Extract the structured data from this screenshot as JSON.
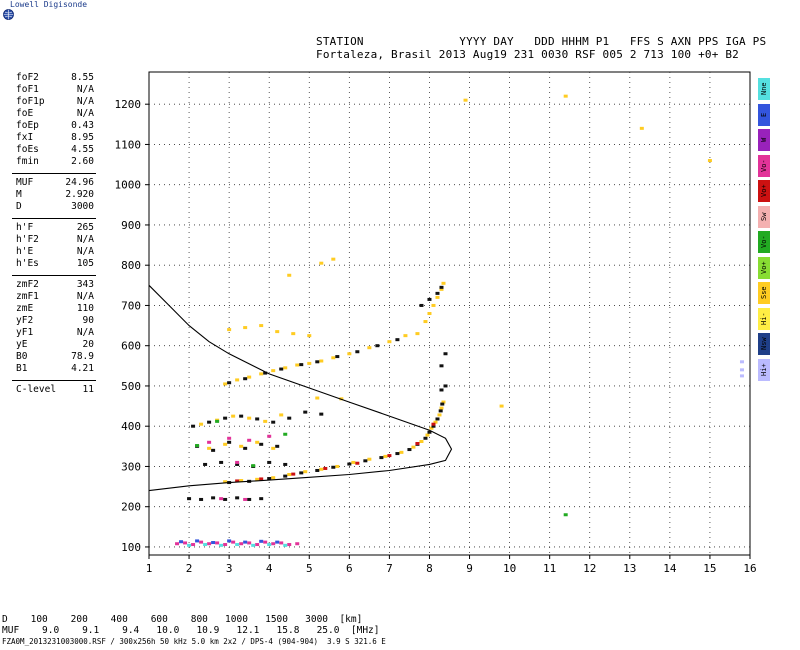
{
  "brand": "Lowell Digisonde",
  "header": {
    "line1": "STATION              YYYY DAY   DDD HHHM P1   FFS S AXN PPS IGA PS",
    "line2": "Fortaleza, Brasil 2013 Aug19 231 0030 RSF 005 2 713 100 +0+ B2"
  },
  "params": [
    {
      "label": "foF2",
      "value": "8.55"
    },
    {
      "label": "foF1",
      "value": "N/A"
    },
    {
      "label": "foF1p",
      "value": "N/A"
    },
    {
      "label": "foE",
      "value": "N/A"
    },
    {
      "label": "foEp",
      "value": "0.43"
    },
    {
      "label": "fxI",
      "value": "8.95"
    },
    {
      "label": "foEs",
      "value": "4.55"
    },
    {
      "label": "fmin",
      "value": "2.60"
    },
    {
      "sep": true
    },
    {
      "label": "MUF",
      "value": "24.96"
    },
    {
      "label": "M",
      "value": "2.920"
    },
    {
      "label": "D",
      "value": "3000"
    },
    {
      "sep": true
    },
    {
      "label": "h'F",
      "value": "265"
    },
    {
      "label": "h'F2",
      "value": "N/A"
    },
    {
      "label": "h'E",
      "value": "N/A"
    },
    {
      "label": "h'Es",
      "value": "105"
    },
    {
      "sep": true
    },
    {
      "label": "zmF2",
      "value": "343"
    },
    {
      "label": "zmF1",
      "value": "N/A"
    },
    {
      "label": "zmE",
      "value": "110"
    },
    {
      "label": "yF2",
      "value": "90"
    },
    {
      "label": "yF1",
      "value": "N/A"
    },
    {
      "label": "yE",
      "value": "20"
    },
    {
      "label": "B0",
      "value": "78.9"
    },
    {
      "label": "B1",
      "value": "4.21"
    },
    {
      "sep": true
    },
    {
      "label": "C-level",
      "value": "11"
    }
  ],
  "legend": [
    {
      "label": "Nne",
      "color": "#55e0e0"
    },
    {
      "label": "E",
      "color": "#3355dd"
    },
    {
      "label": "W",
      "color": "#9922bb"
    },
    {
      "label": "Vo-",
      "color": "#e23399"
    },
    {
      "label": "Vo+",
      "color": "#cc1111"
    },
    {
      "label": "Sw",
      "color": "#f4b0b0"
    },
    {
      "label": "Vo-",
      "color": "#22aa22"
    },
    {
      "label": "Vo+",
      "color": "#88dd33"
    },
    {
      "label": "Sse",
      "color": "#ffcc22"
    },
    {
      "label": "Hi-",
      "color": "#ffee44"
    },
    {
      "label": "Nsw",
      "color": "#1f3f88"
    },
    {
      "label": "Hi+",
      "color": "#bbbbff"
    }
  ],
  "muf_table": {
    "d_label": "D",
    "d_values": [
      "100",
      "200",
      "400",
      "600",
      "800",
      "1000",
      "1500",
      "3000"
    ],
    "d_unit": "[km]",
    "muf_label": "MUF",
    "muf_values": [
      "9.0",
      "9.1",
      "9.4",
      "10.0",
      "10.9",
      "12.1",
      "15.8",
      "25.0"
    ],
    "muf_unit": "[MHz]"
  },
  "footer": "FZA0M_2013231003000.RSF / 300x256h 50 kHz 5.0 km 2x2 / DPS-4 (904-904)  3.9 S 321.6 E",
  "chart_data": {
    "type": "scatter",
    "xlim": [
      1,
      16
    ],
    "ylim": [
      80,
      1280
    ],
    "xticks": [
      1,
      2,
      3,
      4,
      5,
      6,
      7,
      8,
      9,
      10,
      11,
      12,
      13,
      14,
      15,
      16
    ],
    "yticks": [
      100,
      200,
      300,
      400,
      500,
      600,
      700,
      800,
      900,
      1000,
      1100,
      1200
    ],
    "grid": true,
    "profile_curve": [
      [
        1.0,
        750
      ],
      [
        1.5,
        700
      ],
      [
        2.0,
        650
      ],
      [
        2.5,
        610
      ],
      [
        3.0,
        580
      ],
      [
        4.0,
        530
      ],
      [
        5.0,
        495
      ],
      [
        6.0,
        460
      ],
      [
        7.0,
        425
      ],
      [
        8.0,
        390
      ],
      [
        8.4,
        370
      ],
      [
        8.55,
        343
      ],
      [
        8.4,
        315
      ],
      [
        8.0,
        305
      ],
      [
        7.0,
        290
      ],
      [
        6.0,
        280
      ],
      [
        5.0,
        273
      ],
      [
        4.0,
        266
      ],
      [
        3.0,
        260
      ],
      [
        2.0,
        252
      ],
      [
        1.0,
        240
      ]
    ],
    "traces": [
      {
        "name": "Es",
        "color": "#e23399",
        "points": [
          [
            1.7,
            108
          ],
          [
            1.9,
            110
          ],
          [
            2.1,
            106
          ],
          [
            2.3,
            112
          ],
          [
            2.5,
            108
          ],
          [
            2.7,
            110
          ],
          [
            2.9,
            106
          ],
          [
            3.1,
            112
          ],
          [
            3.3,
            108
          ],
          [
            3.5,
            110
          ],
          [
            3.7,
            106
          ],
          [
            3.9,
            112
          ],
          [
            4.1,
            108
          ],
          [
            4.3,
            110
          ],
          [
            4.5,
            106
          ],
          [
            4.7,
            108
          ]
        ]
      },
      {
        "name": "Es2",
        "color": "#3355dd",
        "points": [
          [
            1.8,
            113
          ],
          [
            2.2,
            115
          ],
          [
            2.6,
            111
          ],
          [
            3.0,
            115
          ],
          [
            3.4,
            112
          ],
          [
            3.8,
            114
          ],
          [
            4.2,
            112
          ]
        ]
      },
      {
        "name": "Es3",
        "color": "#55e0e0",
        "points": [
          [
            2.0,
            104
          ],
          [
            2.4,
            106
          ],
          [
            2.8,
            104
          ],
          [
            3.2,
            106
          ],
          [
            3.6,
            104
          ],
          [
            4.0,
            106
          ],
          [
            4.4,
            104
          ]
        ]
      },
      {
        "name": "F-low",
        "color": "#ffcc22",
        "points": [
          [
            2.9,
            262
          ],
          [
            3.3,
            265
          ],
          [
            3.7,
            268
          ],
          [
            4.1,
            272
          ],
          [
            4.5,
            280
          ],
          [
            4.9,
            287
          ],
          [
            5.3,
            293
          ],
          [
            5.7,
            300
          ],
          [
            6.1,
            310
          ],
          [
            6.5,
            318
          ],
          [
            6.9,
            325
          ],
          [
            7.3,
            335
          ],
          [
            7.6,
            348
          ],
          [
            7.8,
            362
          ],
          [
            7.95,
            378
          ],
          [
            8.05,
            395
          ],
          [
            8.15,
            410
          ],
          [
            8.25,
            428
          ],
          [
            8.3,
            445
          ],
          [
            8.35,
            460
          ]
        ]
      },
      {
        "name": "F-low-k",
        "color": "#111111",
        "points": [
          [
            3.0,
            260
          ],
          [
            3.5,
            263
          ],
          [
            4.0,
            270
          ],
          [
            4.4,
            276
          ],
          [
            4.8,
            284
          ],
          [
            5.2,
            290
          ],
          [
            5.6,
            298
          ],
          [
            6.0,
            306
          ],
          [
            6.4,
            314
          ],
          [
            6.8,
            322
          ],
          [
            7.2,
            332
          ],
          [
            7.5,
            342
          ],
          [
            7.7,
            355
          ],
          [
            7.9,
            370
          ],
          [
            8.0,
            385
          ],
          [
            8.1,
            400
          ],
          [
            8.2,
            418
          ],
          [
            8.28,
            438
          ],
          [
            8.32,
            455
          ]
        ]
      },
      {
        "name": "F-low-r",
        "color": "#cc1111",
        "points": [
          [
            3.2,
            264
          ],
          [
            3.8,
            269
          ],
          [
            4.6,
            281
          ],
          [
            5.4,
            295
          ],
          [
            6.2,
            308
          ],
          [
            7.0,
            327
          ],
          [
            7.7,
            357
          ],
          [
            8.1,
            405
          ]
        ]
      },
      {
        "name": "F-2hop",
        "color": "#ffcc22",
        "points": [
          [
            2.9,
            505
          ],
          [
            3.2,
            515
          ],
          [
            3.5,
            522
          ],
          [
            3.8,
            530
          ],
          [
            4.1,
            538
          ],
          [
            4.4,
            545
          ],
          [
            4.7,
            552
          ],
          [
            5.0,
            556
          ],
          [
            5.3,
            562
          ],
          [
            5.6,
            570
          ],
          [
            6.0,
            580
          ],
          [
            6.5,
            595
          ],
          [
            7.0,
            610
          ],
          [
            7.4,
            625
          ]
        ]
      },
      {
        "name": "F-2hop-k",
        "color": "#111111",
        "points": [
          [
            3.0,
            508
          ],
          [
            3.4,
            518
          ],
          [
            3.9,
            532
          ],
          [
            4.3,
            542
          ],
          [
            4.8,
            553
          ],
          [
            5.2,
            560
          ],
          [
            5.7,
            573
          ],
          [
            6.2,
            585
          ],
          [
            6.7,
            600
          ],
          [
            7.2,
            615
          ]
        ]
      },
      {
        "name": "F-2hop-hi",
        "color": "#ffcc22",
        "points": [
          [
            7.7,
            630
          ],
          [
            7.9,
            660
          ],
          [
            8.0,
            680
          ],
          [
            8.1,
            700
          ],
          [
            8.2,
            720
          ],
          [
            8.3,
            740
          ],
          [
            8.35,
            755
          ]
        ]
      },
      {
        "name": "F-2hop-hik",
        "color": "#111111",
        "points": [
          [
            7.8,
            700
          ],
          [
            8.0,
            715
          ],
          [
            8.2,
            730
          ],
          [
            8.3,
            745
          ]
        ]
      },
      {
        "name": "spread",
        "color": "#111111",
        "points": [
          [
            2.1,
            400
          ],
          [
            2.5,
            410
          ],
          [
            2.9,
            420
          ],
          [
            3.3,
            425
          ],
          [
            3.7,
            418
          ],
          [
            4.1,
            410
          ],
          [
            4.5,
            420
          ],
          [
            4.9,
            435
          ],
          [
            5.3,
            430
          ],
          [
            2.2,
            350
          ],
          [
            2.6,
            340
          ],
          [
            3.0,
            360
          ],
          [
            3.4,
            345
          ],
          [
            3.8,
            355
          ],
          [
            4.2,
            350
          ],
          [
            2.4,
            305
          ],
          [
            2.8,
            310
          ],
          [
            3.2,
            305
          ],
          [
            3.6,
            300
          ],
          [
            4.0,
            310
          ],
          [
            4.4,
            305
          ],
          [
            2.0,
            220
          ],
          [
            2.3,
            218
          ],
          [
            2.6,
            222
          ],
          [
            2.9,
            218
          ],
          [
            3.2,
            222
          ],
          [
            3.5,
            218
          ],
          [
            3.8,
            220
          ]
        ]
      },
      {
        "name": "spread-y",
        "color": "#ffcc22",
        "points": [
          [
            2.3,
            405
          ],
          [
            2.7,
            415
          ],
          [
            3.1,
            425
          ],
          [
            3.5,
            420
          ],
          [
            3.9,
            412
          ],
          [
            4.3,
            428
          ],
          [
            2.5,
            345
          ],
          [
            2.9,
            355
          ],
          [
            3.3,
            350
          ],
          [
            3.7,
            360
          ],
          [
            4.1,
            345
          ],
          [
            3.0,
            640
          ],
          [
            3.4,
            645
          ],
          [
            3.8,
            650
          ],
          [
            4.2,
            635
          ],
          [
            4.6,
            630
          ],
          [
            5.0,
            625
          ]
        ]
      },
      {
        "name": "spread-m",
        "color": "#e23399",
        "points": [
          [
            2.5,
            360
          ],
          [
            3.0,
            370
          ],
          [
            3.5,
            365
          ],
          [
            4.0,
            375
          ],
          [
            2.8,
            220
          ],
          [
            3.4,
            218
          ],
          [
            3.2,
            310
          ]
        ]
      },
      {
        "name": "spread-g",
        "color": "#22aa22",
        "points": [
          [
            2.2,
            352
          ],
          [
            2.7,
            412
          ],
          [
            3.6,
            302
          ],
          [
            4.4,
            380
          ]
        ]
      },
      {
        "name": "misc",
        "color": "#ffcc22",
        "points": [
          [
            4.5,
            775
          ],
          [
            5.3,
            805
          ],
          [
            5.6,
            815
          ],
          [
            8.9,
            1210
          ],
          [
            11.4,
            1220
          ],
          [
            13.3,
            1140
          ],
          [
            15.0,
            1060
          ],
          [
            9.8,
            450
          ],
          [
            5.2,
            470
          ],
          [
            5.8,
            468
          ]
        ]
      },
      {
        "name": "misc-k",
        "color": "#111111",
        "points": [
          [
            8.3,
            550
          ],
          [
            8.4,
            580
          ],
          [
            8.4,
            500
          ],
          [
            8.3,
            490
          ]
        ]
      },
      {
        "name": "misc-b",
        "color": "#bbbbff",
        "points": [
          [
            15.8,
            560
          ],
          [
            15.8,
            540
          ],
          [
            15.8,
            525
          ]
        ]
      },
      {
        "name": "misc-g",
        "color": "#22aa22",
        "points": [
          [
            11.4,
            180
          ]
        ]
      }
    ]
  }
}
